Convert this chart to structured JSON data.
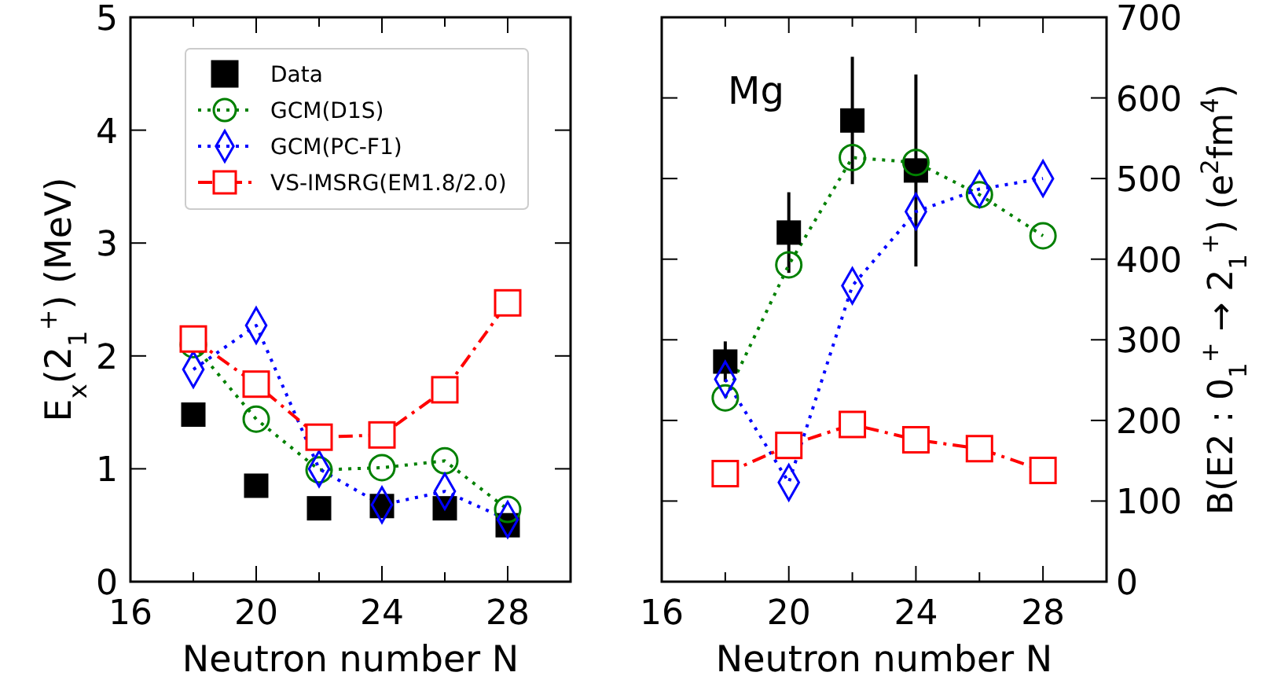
{
  "chart_data": [
    {
      "type": "line",
      "xlabel": "Neutron number N",
      "ylabel": "E$_{x}$(2$_{1}$$^{+}$) (MeV)",
      "x": [
        18,
        20,
        22,
        24,
        26,
        28
      ],
      "xlim": [
        16,
        30
      ],
      "xticks": [
        16,
        {
          "value": 18,
          "label": null
        },
        20,
        {
          "value": 22,
          "label": null
        },
        24,
        {
          "value": 26,
          "label": null
        },
        28
      ],
      "ylim": [
        0,
        5
      ],
      "yticks": [
        0,
        1,
        2,
        3,
        4,
        5
      ],
      "legend": "top",
      "grid": false,
      "series": [
        {
          "name": "Data",
          "type": "scatter",
          "color": "#000000",
          "marker": "square",
          "values": [
            1.48,
            0.85,
            0.65,
            0.67,
            0.65,
            0.5
          ]
        },
        {
          "name": "GCM(D1S)",
          "type": "line",
          "color": "#008000",
          "marker": "circle",
          "line_style": "dotted",
          "values": [
            2.1,
            1.44,
            0.99,
            1.01,
            1.07,
            0.64
          ]
        },
        {
          "name": "GCM(PC-F1)",
          "type": "line",
          "color": "#0000ff",
          "marker": "diamond",
          "line_style": "dotted",
          "values": [
            1.88,
            2.27,
            1.0,
            0.68,
            0.8,
            0.55
          ]
        },
        {
          "name": "VS-IMSRG(EM1.8/2.0)",
          "type": "line",
          "color": "#ff0000",
          "marker": "square",
          "line_style": "dashed",
          "values": [
            2.15,
            1.75,
            1.28,
            1.3,
            1.7,
            2.47
          ]
        }
      ]
    },
    {
      "type": "line",
      "xlabel": "Neutron number N",
      "y2label": "B(E2 : 0$_{1}$$^{+}$ → 2$_{1}$$^{+}$) (e$^{2}$fm$^{4}$)",
      "x": [
        18,
        20,
        22,
        24,
        26,
        28
      ],
      "xlim": [
        16,
        30
      ],
      "xticks": [
        16,
        {
          "value": 18,
          "label": null
        },
        20,
        {
          "value": 22,
          "label": null
        },
        24,
        {
          "value": 26,
          "label": null
        },
        28
      ],
      "y2lim": [
        0,
        700
      ],
      "y2ticks": [
        0,
        100,
        200,
        300,
        400,
        500,
        600,
        700
      ],
      "legend": false,
      "grid": false,
      "annotations": [
        "Mg"
      ],
      "series": [
        {
          "type": "scatter",
          "axis": "y2",
          "color": "#000000",
          "marker": "square",
          "values": [
            273,
            433,
            572,
            510,
            null,
            null
          ],
          "errors": [
            25,
            50,
            79,
            119,
            null,
            null
          ]
        },
        {
          "type": "line",
          "axis": "y2",
          "color": "#008000",
          "marker": "circle",
          "line_style": "dotted",
          "values": [
            228,
            393,
            526,
            520,
            480,
            429
          ]
        },
        {
          "type": "line",
          "axis": "y2",
          "color": "#0000ff",
          "marker": "diamond",
          "line_style": "dotted",
          "values": [
            251,
            123,
            367,
            459,
            487,
            500
          ]
        },
        {
          "type": "line",
          "axis": "y2",
          "color": "#ff0000",
          "marker": "square",
          "line_style": "dashed",
          "values": [
            134,
            169,
            195,
            176,
            165,
            138
          ]
        }
      ]
    }
  ]
}
